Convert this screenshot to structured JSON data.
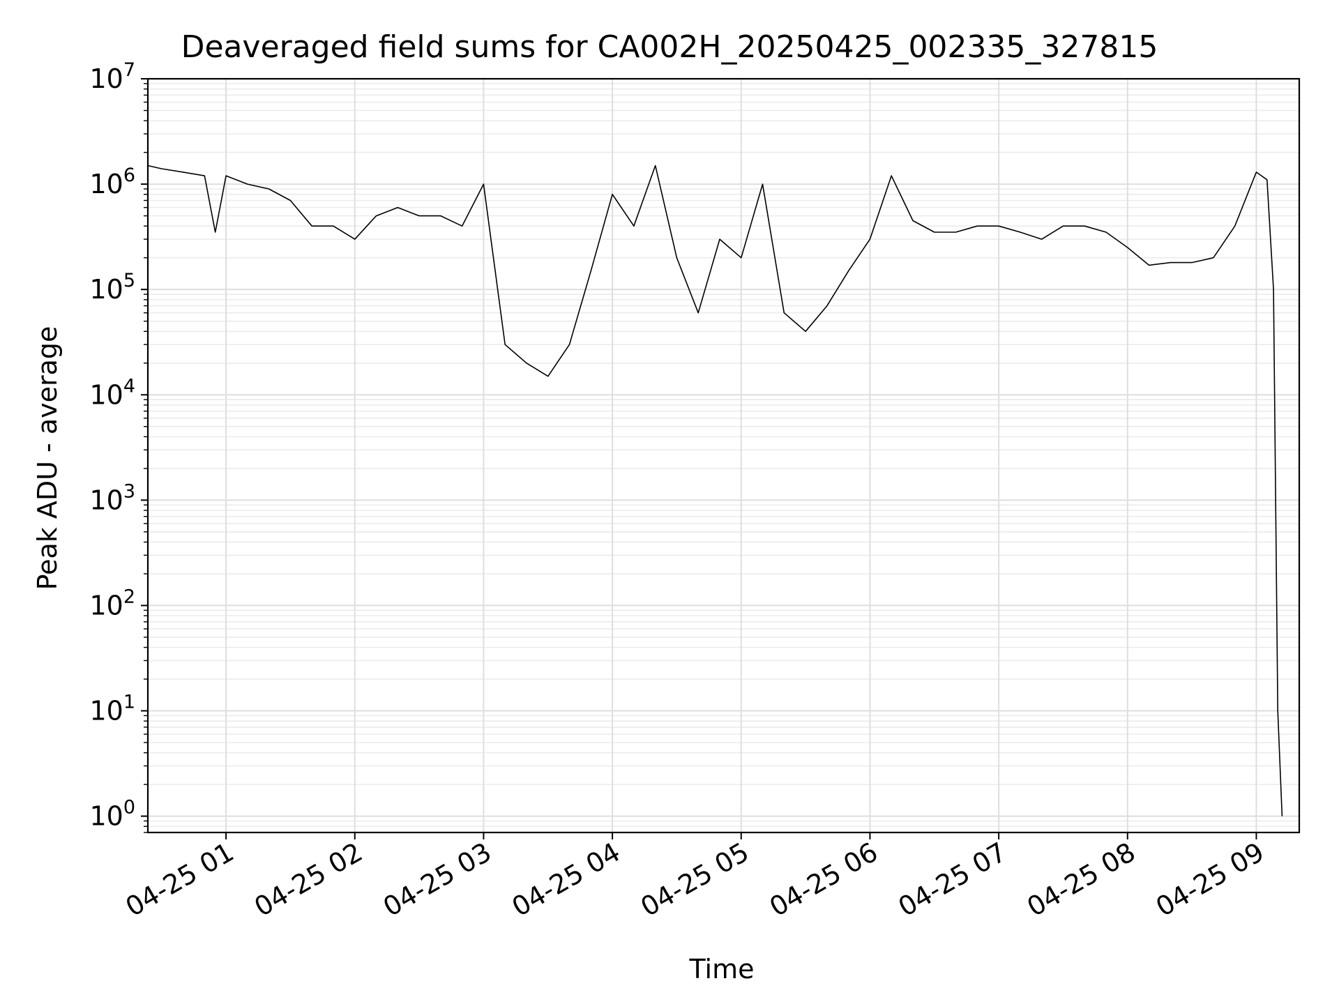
{
  "chart_data": {
    "type": "line",
    "title": "Deaveraged field sums for CA002H_20250425_002335_327815",
    "xlabel": "Time",
    "ylabel": "Peak ADU - average",
    "yscale": "log",
    "ylim": [
      0.7,
      10000000
    ],
    "xlim": [
      "2025-04-25 00:23:35",
      "2025-04-25 09:20:00"
    ],
    "grid": true,
    "ytick_labels": [
      {
        "base": "10",
        "exp": "0",
        "value": 1
      },
      {
        "base": "10",
        "exp": "1",
        "value": 10
      },
      {
        "base": "10",
        "exp": "2",
        "value": 100
      },
      {
        "base": "10",
        "exp": "3",
        "value": 1000
      },
      {
        "base": "10",
        "exp": "4",
        "value": 10000
      },
      {
        "base": "10",
        "exp": "5",
        "value": 100000
      },
      {
        "base": "10",
        "exp": "6",
        "value": 1000000
      },
      {
        "base": "10",
        "exp": "7",
        "value": 10000000
      }
    ],
    "xtick_labels": [
      {
        "label": "04-25 01",
        "time": "2025-04-25 01:00"
      },
      {
        "label": "04-25 02",
        "time": "2025-04-25 02:00"
      },
      {
        "label": "04-25 03",
        "time": "2025-04-25 03:00"
      },
      {
        "label": "04-25 04",
        "time": "2025-04-25 04:00"
      },
      {
        "label": "04-25 05",
        "time": "2025-04-25 05:00"
      },
      {
        "label": "04-25 06",
        "time": "2025-04-25 06:00"
      },
      {
        "label": "04-25 07",
        "time": "2025-04-25 07:00"
      },
      {
        "label": "04-25 08",
        "time": "2025-04-25 08:00"
      },
      {
        "label": "04-25 09",
        "time": "2025-04-25 09:00"
      }
    ],
    "series": [
      {
        "color": "#000000",
        "x": [
          "2025-04-25 00:23:35",
          "2025-04-25 00:30",
          "2025-04-25 00:40",
          "2025-04-25 00:50",
          "2025-04-25 00:55",
          "2025-04-25 01:00",
          "2025-04-25 01:10",
          "2025-04-25 01:20",
          "2025-04-25 01:30",
          "2025-04-25 01:40",
          "2025-04-25 01:50",
          "2025-04-25 02:00",
          "2025-04-25 02:10",
          "2025-04-25 02:20",
          "2025-04-25 02:30",
          "2025-04-25 02:40",
          "2025-04-25 02:50",
          "2025-04-25 03:00",
          "2025-04-25 03:10",
          "2025-04-25 03:20",
          "2025-04-25 03:30",
          "2025-04-25 03:40",
          "2025-04-25 03:50",
          "2025-04-25 04:00",
          "2025-04-25 04:10",
          "2025-04-25 04:20",
          "2025-04-25 04:30",
          "2025-04-25 04:40",
          "2025-04-25 04:50",
          "2025-04-25 05:00",
          "2025-04-25 05:10",
          "2025-04-25 05:20",
          "2025-04-25 05:30",
          "2025-04-25 05:40",
          "2025-04-25 05:50",
          "2025-04-25 06:00",
          "2025-04-25 06:10",
          "2025-04-25 06:20",
          "2025-04-25 06:30",
          "2025-04-25 06:40",
          "2025-04-25 06:50",
          "2025-04-25 07:00",
          "2025-04-25 07:10",
          "2025-04-25 07:20",
          "2025-04-25 07:30",
          "2025-04-25 07:40",
          "2025-04-25 07:50",
          "2025-04-25 08:00",
          "2025-04-25 08:10",
          "2025-04-25 08:20",
          "2025-04-25 08:30",
          "2025-04-25 08:40",
          "2025-04-25 08:50",
          "2025-04-25 09:00",
          "2025-04-25 09:05",
          "2025-04-25 09:08",
          "2025-04-25 09:10",
          "2025-04-25 09:12"
        ],
        "y": [
          1500000,
          1400000,
          1300000,
          1200000,
          350000,
          1200000,
          1000000,
          900000,
          700000,
          400000,
          400000,
          300000,
          500000,
          600000,
          500000,
          500000,
          400000,
          1000000,
          30000,
          20000,
          15000,
          30000,
          150000,
          800000,
          400000,
          1500000,
          200000,
          60000,
          300000,
          200000,
          1000000,
          60000,
          40000,
          70000,
          150000,
          300000,
          1200000,
          450000,
          350000,
          350000,
          400000,
          400000,
          350000,
          300000,
          400000,
          400000,
          350000,
          250000,
          170000,
          180000,
          180000,
          200000,
          400000,
          1300000,
          1100000,
          100000,
          10,
          1
        ]
      }
    ]
  }
}
